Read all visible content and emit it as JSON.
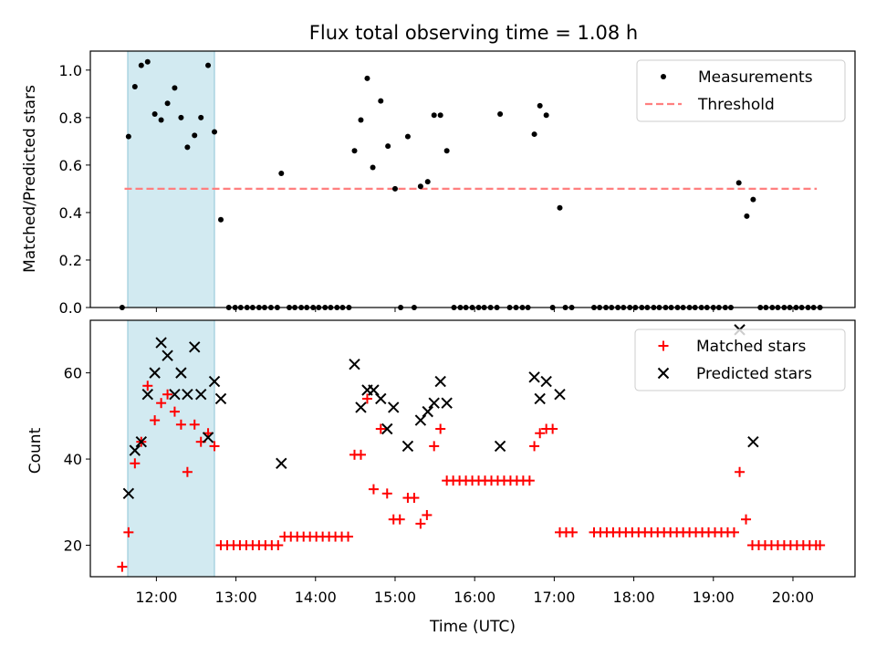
{
  "colors": {
    "measurement": "#000000",
    "threshold": "#ff7f7f",
    "matched": "#ff0000",
    "predicted": "#000000",
    "span": "#add8e6"
  },
  "chart_data": [
    {
      "type": "scatter",
      "title": "Flux total observing time = 1.08 h",
      "xlabel": "",
      "ylabel": "Matched/Predicted stars",
      "xlim": [
        11.17,
        20.78
      ],
      "ylim": [
        0.0,
        1.08
      ],
      "yticks": [
        "0.0",
        "0.2",
        "0.4",
        "0.6",
        "0.8",
        "1.0"
      ],
      "highlight_span": [
        11.64,
        12.73
      ],
      "threshold": {
        "name": "Threshold",
        "y": 0.5,
        "x_range": [
          11.6,
          20.3
        ],
        "style": "dashed"
      },
      "legend": [
        "Measurements",
        "Threshold"
      ],
      "legend_position": "upper right",
      "series": [
        {
          "name": "Measurements",
          "marker": "dot",
          "points": [
            [
              11.57,
              0.0
            ],
            [
              11.65,
              0.72
            ],
            [
              11.73,
              0.93
            ],
            [
              11.81,
              1.02
            ],
            [
              11.89,
              1.035
            ],
            [
              11.98,
              0.815
            ],
            [
              12.06,
              0.79
            ],
            [
              12.14,
              0.86
            ],
            [
              12.23,
              0.925
            ],
            [
              12.31,
              0.8
            ],
            [
              12.39,
              0.675
            ],
            [
              12.48,
              0.725
            ],
            [
              12.56,
              0.8
            ],
            [
              12.65,
              1.02
            ],
            [
              12.73,
              0.74
            ],
            [
              12.81,
              0.37
            ],
            [
              12.91,
              0.0
            ],
            [
              12.99,
              0.0
            ],
            [
              13.06,
              0.0
            ],
            [
              13.14,
              0.0
            ],
            [
              13.21,
              0.0
            ],
            [
              13.29,
              0.0
            ],
            [
              13.36,
              0.0
            ],
            [
              13.44,
              0.0
            ],
            [
              13.52,
              0.0
            ],
            [
              13.57,
              0.565
            ],
            [
              13.67,
              0.0
            ],
            [
              13.74,
              0.0
            ],
            [
              13.82,
              0.0
            ],
            [
              13.89,
              0.0
            ],
            [
              13.97,
              0.0
            ],
            [
              14.04,
              0.0
            ],
            [
              14.12,
              0.0
            ],
            [
              14.19,
              0.0
            ],
            [
              14.27,
              0.0
            ],
            [
              14.34,
              0.0
            ],
            [
              14.42,
              0.0
            ],
            [
              14.49,
              0.66
            ],
            [
              14.57,
              0.79
            ],
            [
              14.65,
              0.965
            ],
            [
              14.72,
              0.59
            ],
            [
              14.82,
              0.87
            ],
            [
              14.91,
              0.68
            ],
            [
              15.0,
              0.5
            ],
            [
              15.07,
              0.0
            ],
            [
              15.16,
              0.72
            ],
            [
              15.24,
              0.0
            ],
            [
              15.32,
              0.51
            ],
            [
              15.41,
              0.53
            ],
            [
              15.49,
              0.81
            ],
            [
              15.57,
              0.81
            ],
            [
              15.65,
              0.66
            ],
            [
              15.74,
              0.0
            ],
            [
              15.82,
              0.0
            ],
            [
              15.89,
              0.0
            ],
            [
              15.97,
              0.0
            ],
            [
              16.05,
              0.0
            ],
            [
              16.12,
              0.0
            ],
            [
              16.2,
              0.0
            ],
            [
              16.28,
              0.0
            ],
            [
              16.32,
              0.815
            ],
            [
              16.44,
              0.0
            ],
            [
              16.52,
              0.0
            ],
            [
              16.6,
              0.0
            ],
            [
              16.67,
              0.0
            ],
            [
              16.75,
              0.73
            ],
            [
              16.82,
              0.85
            ],
            [
              16.9,
              0.81
            ],
            [
              16.98,
              0.0
            ],
            [
              17.07,
              0.42
            ],
            [
              17.14,
              0.0
            ],
            [
              17.22,
              0.0
            ],
            [
              17.5,
              0.0
            ],
            [
              17.57,
              0.0
            ],
            [
              17.65,
              0.0
            ],
            [
              17.72,
              0.0
            ],
            [
              17.8,
              0.0
            ],
            [
              17.87,
              0.0
            ],
            [
              17.95,
              0.0
            ],
            [
              18.02,
              0.0
            ],
            [
              18.1,
              0.0
            ],
            [
              18.17,
              0.0
            ],
            [
              18.25,
              0.0
            ],
            [
              18.32,
              0.0
            ],
            [
              18.4,
              0.0
            ],
            [
              18.47,
              0.0
            ],
            [
              18.55,
              0.0
            ],
            [
              18.62,
              0.0
            ],
            [
              18.7,
              0.0
            ],
            [
              18.77,
              0.0
            ],
            [
              18.85,
              0.0
            ],
            [
              18.92,
              0.0
            ],
            [
              19.0,
              0.0
            ],
            [
              19.07,
              0.0
            ],
            [
              19.15,
              0.0
            ],
            [
              19.22,
              0.0
            ],
            [
              19.32,
              0.525
            ],
            [
              19.42,
              0.385
            ],
            [
              19.5,
              0.455
            ],
            [
              19.59,
              0.0
            ],
            [
              19.66,
              0.0
            ],
            [
              19.74,
              0.0
            ],
            [
              19.81,
              0.0
            ],
            [
              19.89,
              0.0
            ],
            [
              19.96,
              0.0
            ],
            [
              20.04,
              0.0
            ],
            [
              20.11,
              0.0
            ],
            [
              20.19,
              0.0
            ],
            [
              20.26,
              0.0
            ],
            [
              20.34,
              0.0
            ]
          ]
        }
      ]
    },
    {
      "type": "scatter",
      "title": "",
      "xlabel": "Time (UTC)",
      "ylabel": "Count",
      "xlim": [
        11.17,
        20.78
      ],
      "ylim": [
        12.7,
        72.2
      ],
      "yticks": [
        "20",
        "40",
        "60"
      ],
      "xticks": [
        "12:00",
        "13:00",
        "14:00",
        "15:00",
        "16:00",
        "17:00",
        "18:00",
        "19:00",
        "20:00"
      ],
      "highlight_span": [
        11.64,
        12.73
      ],
      "legend": [
        "Matched stars",
        "Predicted stars"
      ],
      "legend_position": "upper right",
      "series": [
        {
          "name": "Matched stars",
          "marker": "plus",
          "points": [
            [
              11.57,
              15
            ],
            [
              11.65,
              23
            ],
            [
              11.73,
              39
            ],
            [
              11.81,
              44
            ],
            [
              11.89,
              57
            ],
            [
              11.98,
              49
            ],
            [
              12.06,
              53
            ],
            [
              12.14,
              55
            ],
            [
              12.23,
              51
            ],
            [
              12.31,
              48
            ],
            [
              12.39,
              37
            ],
            [
              12.48,
              48
            ],
            [
              12.56,
              44
            ],
            [
              12.65,
              46
            ],
            [
              12.73,
              43
            ],
            [
              12.81,
              20
            ],
            [
              12.89,
              20
            ],
            [
              12.97,
              20
            ],
            [
              13.05,
              20
            ],
            [
              13.13,
              20
            ],
            [
              13.21,
              20
            ],
            [
              13.29,
              20
            ],
            [
              13.37,
              20
            ],
            [
              13.45,
              20
            ],
            [
              13.53,
              20
            ],
            [
              13.61,
              22
            ],
            [
              13.69,
              22
            ],
            [
              13.77,
              22
            ],
            [
              13.85,
              22
            ],
            [
              13.93,
              22
            ],
            [
              14.01,
              22
            ],
            [
              14.09,
              22
            ],
            [
              14.17,
              22
            ],
            [
              14.25,
              22
            ],
            [
              14.33,
              22
            ],
            [
              14.41,
              22
            ],
            [
              14.49,
              41
            ],
            [
              14.57,
              41
            ],
            [
              14.65,
              54
            ],
            [
              14.73,
              33
            ],
            [
              14.82,
              47
            ],
            [
              14.9,
              32
            ],
            [
              14.98,
              26
            ],
            [
              15.06,
              26
            ],
            [
              15.16,
              31
            ],
            [
              15.24,
              31
            ],
            [
              15.32,
              25
            ],
            [
              15.4,
              27
            ],
            [
              15.49,
              43
            ],
            [
              15.57,
              47
            ],
            [
              15.65,
              35
            ],
            [
              15.73,
              35
            ],
            [
              15.81,
              35
            ],
            [
              15.89,
              35
            ],
            [
              15.97,
              35
            ],
            [
              16.05,
              35
            ],
            [
              16.13,
              35
            ],
            [
              16.21,
              35
            ],
            [
              16.29,
              35
            ],
            [
              16.37,
              35
            ],
            [
              16.45,
              35
            ],
            [
              16.53,
              35
            ],
            [
              16.61,
              35
            ],
            [
              16.69,
              35
            ],
            [
              16.75,
              43
            ],
            [
              16.82,
              46
            ],
            [
              16.9,
              47
            ],
            [
              16.98,
              47
            ],
            [
              17.07,
              23
            ],
            [
              17.15,
              23
            ],
            [
              17.23,
              23
            ],
            [
              17.5,
              23
            ],
            [
              17.58,
              23
            ],
            [
              17.66,
              23
            ],
            [
              17.74,
              23
            ],
            [
              17.82,
              23
            ],
            [
              17.9,
              23
            ],
            [
              17.98,
              23
            ],
            [
              18.06,
              23
            ],
            [
              18.14,
              23
            ],
            [
              18.22,
              23
            ],
            [
              18.3,
              23
            ],
            [
              18.38,
              23
            ],
            [
              18.46,
              23
            ],
            [
              18.54,
              23
            ],
            [
              18.62,
              23
            ],
            [
              18.7,
              23
            ],
            [
              18.78,
              23
            ],
            [
              18.86,
              23
            ],
            [
              18.94,
              23
            ],
            [
              19.02,
              23
            ],
            [
              19.1,
              23
            ],
            [
              19.18,
              23
            ],
            [
              19.26,
              23
            ],
            [
              19.33,
              37
            ],
            [
              19.41,
              26
            ],
            [
              19.49,
              20
            ],
            [
              19.57,
              20
            ],
            [
              19.65,
              20
            ],
            [
              19.73,
              20
            ],
            [
              19.81,
              20
            ],
            [
              19.89,
              20
            ],
            [
              19.97,
              20
            ],
            [
              20.05,
              20
            ],
            [
              20.13,
              20
            ],
            [
              20.21,
              20
            ],
            [
              20.29,
              20
            ],
            [
              20.34,
              20
            ]
          ]
        },
        {
          "name": "Predicted stars",
          "marker": "x",
          "points": [
            [
              11.65,
              32
            ],
            [
              11.73,
              42
            ],
            [
              11.81,
              44
            ],
            [
              11.89,
              55
            ],
            [
              11.98,
              60
            ],
            [
              12.06,
              67
            ],
            [
              12.14,
              64
            ],
            [
              12.23,
              55
            ],
            [
              12.31,
              60
            ],
            [
              12.39,
              55
            ],
            [
              12.48,
              66
            ],
            [
              12.56,
              55
            ],
            [
              12.65,
              45
            ],
            [
              12.73,
              58
            ],
            [
              12.81,
              54
            ],
            [
              13.57,
              39
            ],
            [
              14.49,
              62
            ],
            [
              14.57,
              52
            ],
            [
              14.65,
              56
            ],
            [
              14.73,
              56
            ],
            [
              14.82,
              54
            ],
            [
              14.9,
              47
            ],
            [
              14.98,
              52
            ],
            [
              15.16,
              43
            ],
            [
              15.32,
              49
            ],
            [
              15.41,
              51
            ],
            [
              15.49,
              53
            ],
            [
              15.57,
              58
            ],
            [
              15.65,
              53
            ],
            [
              16.32,
              43
            ],
            [
              16.75,
              59
            ],
            [
              16.82,
              54
            ],
            [
              16.9,
              58
            ],
            [
              17.07,
              55
            ],
            [
              19.33,
              70
            ],
            [
              19.5,
              44
            ]
          ]
        }
      ]
    }
  ]
}
